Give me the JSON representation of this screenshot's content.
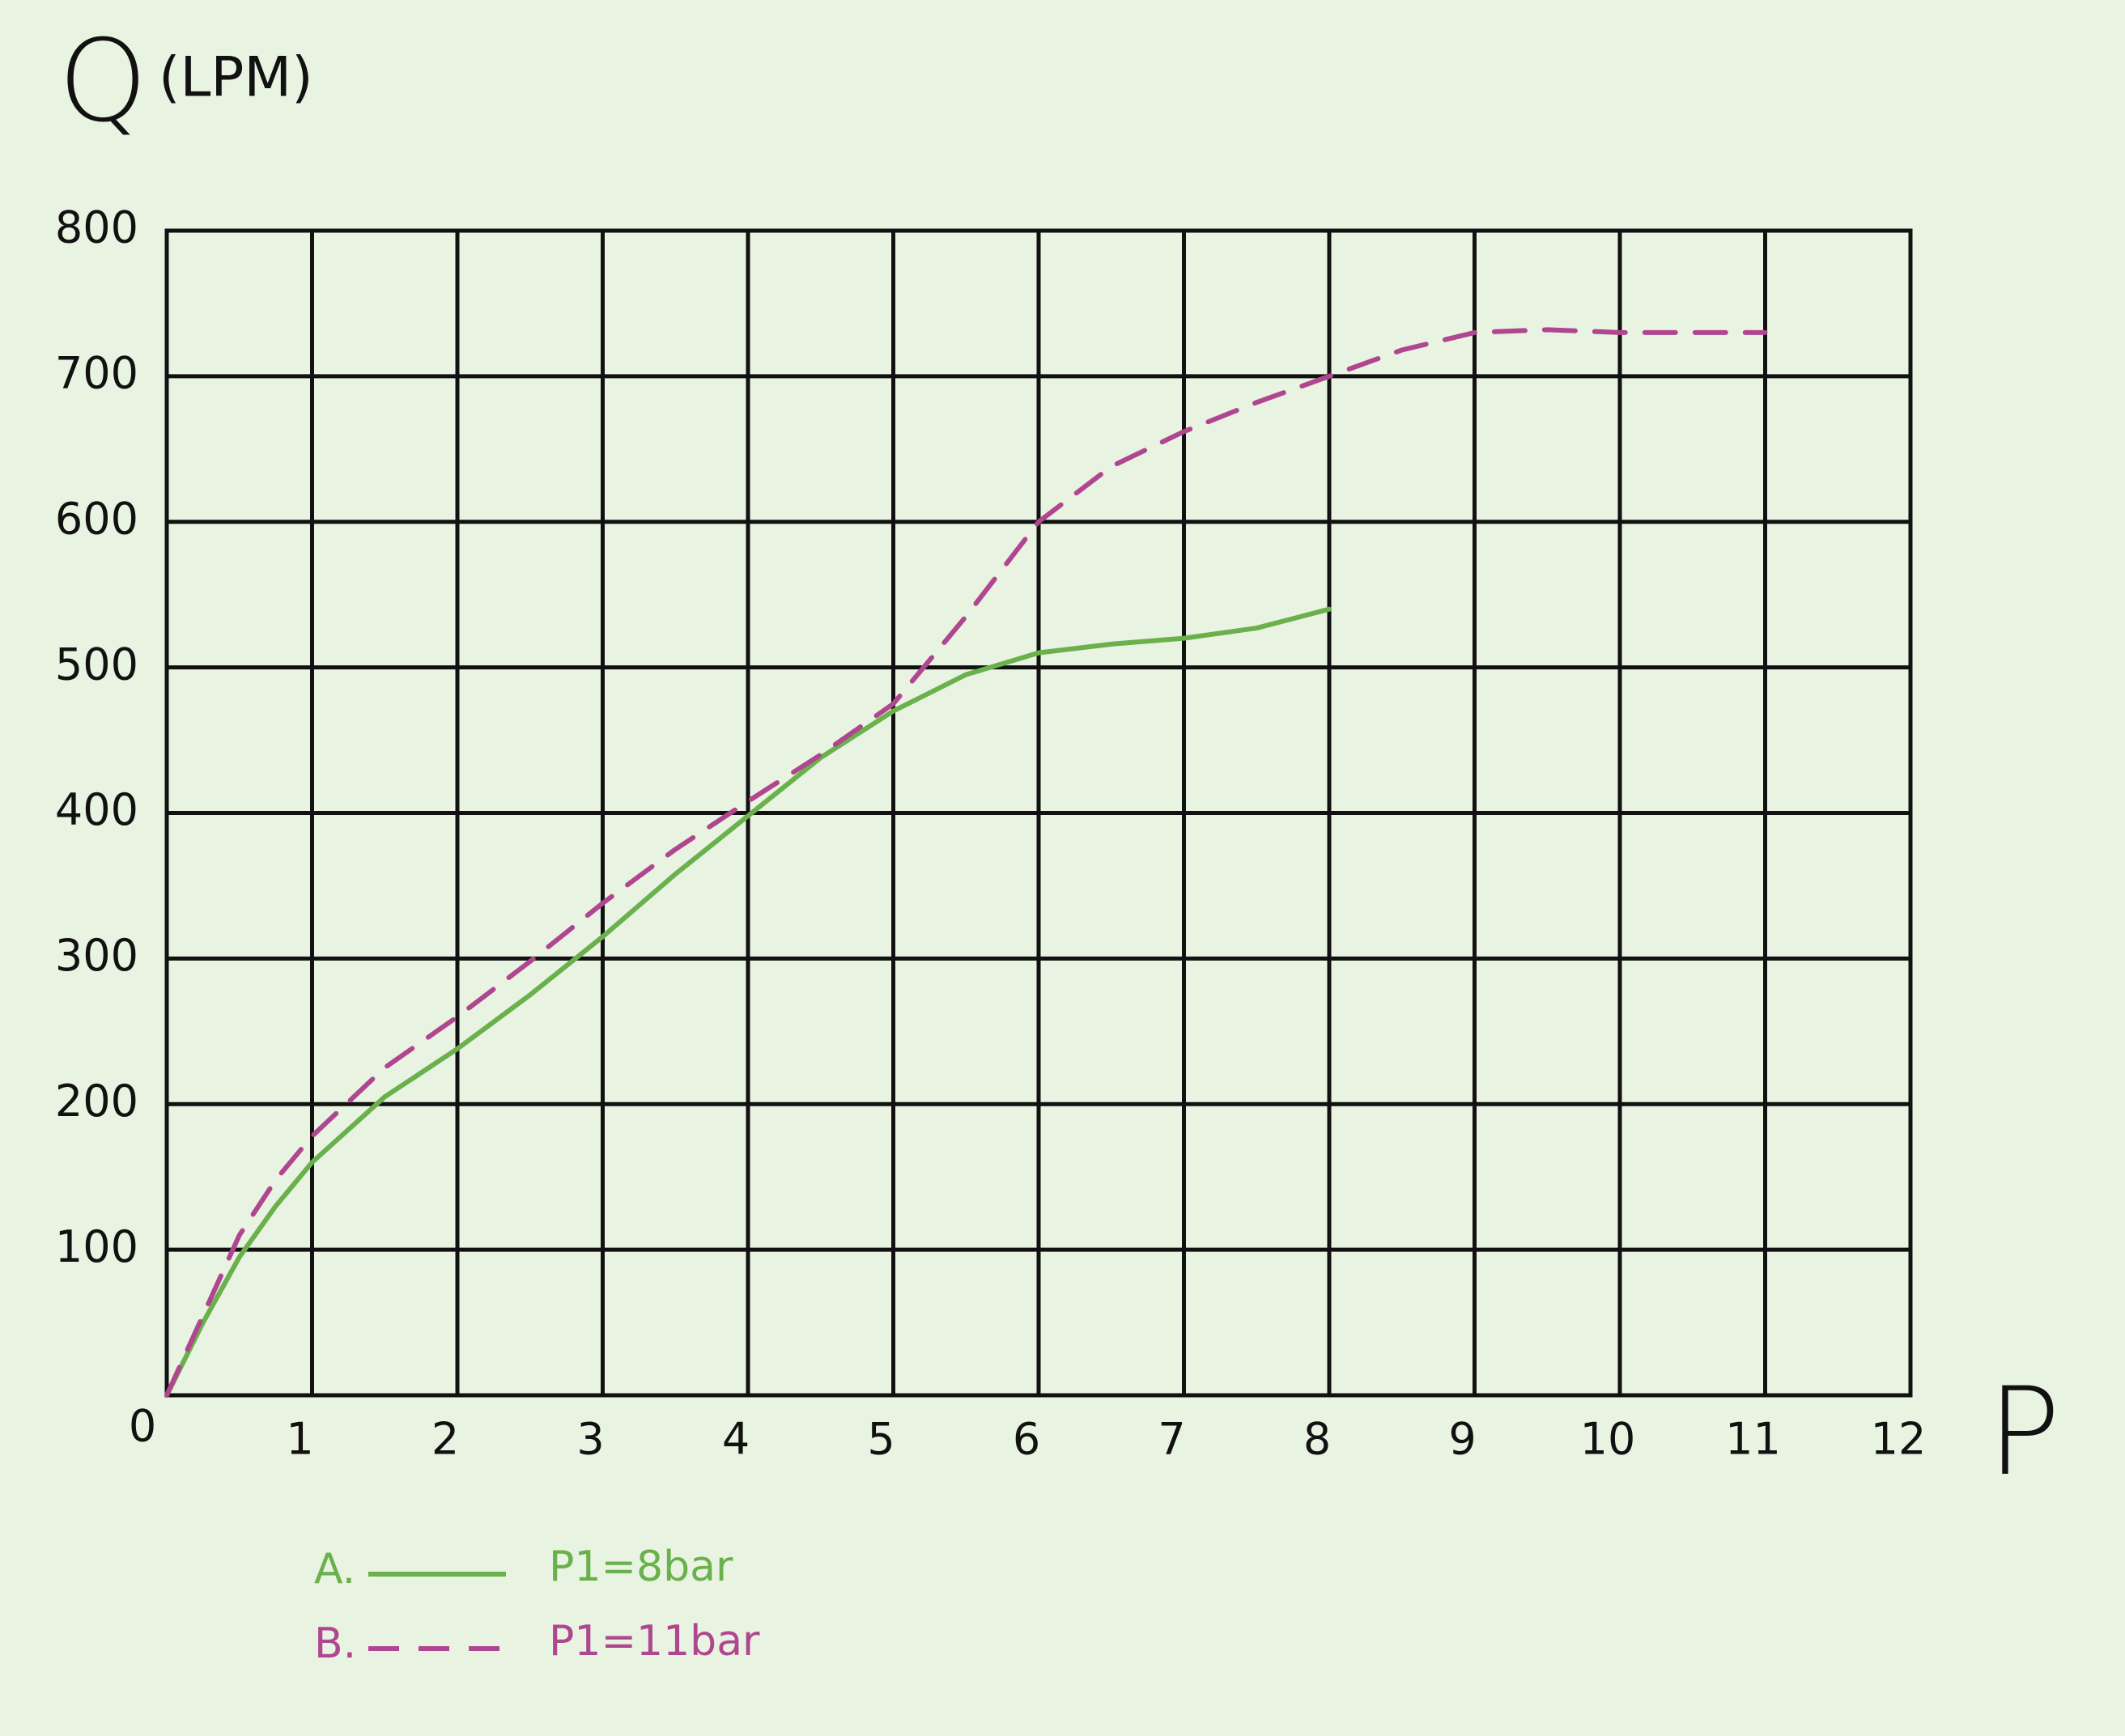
{
  "chart_data": {
    "type": "line",
    "y_label": "Q",
    "y_unit": "(LPM)",
    "x_label": "P",
    "xlim": [
      0,
      12
    ],
    "xticks": [
      0,
      1,
      2,
      3,
      4,
      5,
      6,
      7,
      8,
      9,
      10,
      11,
      12
    ],
    "ylim": [
      0,
      800
    ],
    "yticks": [
      100,
      200,
      300,
      400,
      500,
      600,
      700,
      800
    ],
    "grid": true,
    "series": [
      {
        "name": "P1=8bar",
        "marker": "A.",
        "color": "#6ab04c",
        "dash": "solid",
        "x": [
          0,
          0.25,
          0.5,
          0.75,
          1,
          1.5,
          2,
          2.5,
          3,
          3.5,
          4,
          4.5,
          5,
          5.5,
          6,
          6.5,
          7,
          7.5,
          8
        ],
        "values": [
          0,
          50,
          95,
          130,
          160,
          205,
          238,
          275,
          315,
          358,
          398,
          438,
          470,
          495,
          510,
          516,
          520,
          527,
          540
        ]
      },
      {
        "name": "P1=11bar",
        "marker": "B.",
        "color": "#b0468f",
        "dash": "dashed",
        "x": [
          0,
          0.25,
          0.5,
          0.75,
          1,
          1.5,
          2,
          2.5,
          3,
          3.5,
          4,
          4.5,
          5,
          5.5,
          6,
          6.5,
          7,
          7.5,
          8,
          8.5,
          9,
          9.5,
          10,
          11
        ],
        "values": [
          0,
          55,
          110,
          148,
          178,
          225,
          260,
          298,
          338,
          375,
          408,
          440,
          475,
          535,
          600,
          638,
          662,
          682,
          700,
          718,
          730,
          732,
          730,
          730
        ]
      }
    ]
  }
}
